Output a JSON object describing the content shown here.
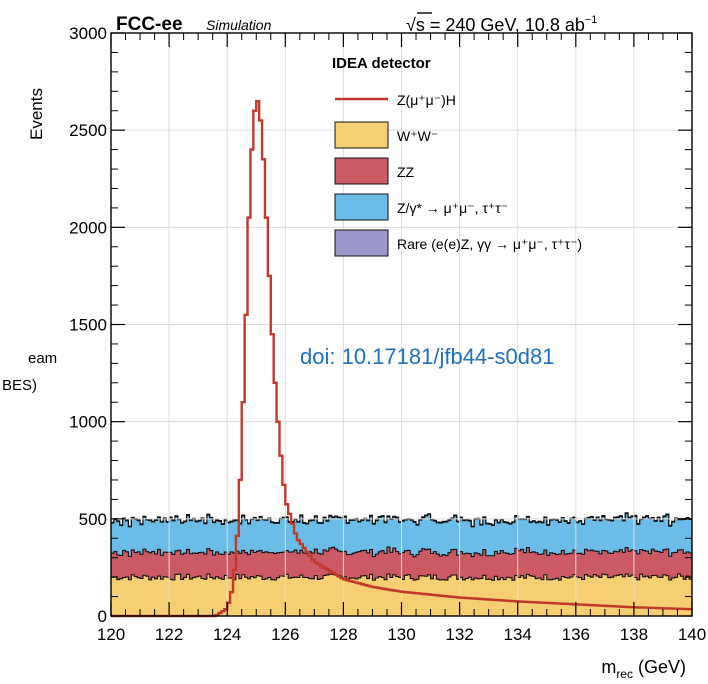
{
  "experiment": "FCC-ee",
  "simulation_label": "Simulation",
  "energy_prefix": "√s = 240 GeV, 10.8 ab",
  "energy_exponent": "−1",
  "detector": "IDEA detector",
  "doi": "doi: 10.17181/jfb44-s0d81",
  "cut_text_1": "eam",
  "cut_text_2": "BES)",
  "colors": {
    "signal": "#c0392b",
    "ww": "#f7cf73",
    "zz": "#cc5a64",
    "zgamma": "#6bbce6",
    "rare": "#9b97c9",
    "doi": "#1f6fc2"
  },
  "chart_data": {
    "type": "histogram",
    "xlabel": "m",
    "xlabel_sub": "rec",
    "xlabel_unit": " (GeV)",
    "ylabel": "Events",
    "xlim": [
      120,
      140
    ],
    "ylim": [
      0,
      3000
    ],
    "x_ticks": [
      "120",
      "122",
      "124",
      "126",
      "128",
      "130",
      "132",
      "134",
      "136",
      "138",
      "140"
    ],
    "y_ticks": [
      "0",
      "500",
      "1000",
      "1500",
      "2000",
      "2500",
      "3000"
    ],
    "grid": true,
    "legend_position": "top-right",
    "bin_width": 0.1,
    "stack_series": [
      {
        "name": "W⁺W⁻",
        "key": "ww",
        "level": 200
      },
      {
        "name": "ZZ",
        "key": "zz",
        "level": 130
      },
      {
        "name": "Z/γ* → μ⁺μ⁻, τ⁺τ⁻",
        "key": "zgamma",
        "level": 165
      },
      {
        "name": "Rare (e(e)Z, γγ → μ⁺μ⁻, τ⁺τ⁻)",
        "key": "rare",
        "level": 4
      }
    ],
    "signal": {
      "name": "Z(μ⁺μ⁻)H",
      "peak_x": 125.0,
      "peak_y": 2700,
      "points": [
        [
          123.6,
          0
        ],
        [
          124.0,
          40
        ],
        [
          124.2,
          150
        ],
        [
          124.4,
          500
        ],
        [
          124.6,
          1300
        ],
        [
          124.8,
          2300
        ],
        [
          125.0,
          2700
        ],
        [
          125.2,
          2500
        ],
        [
          125.4,
          1900
        ],
        [
          125.6,
          1300
        ],
        [
          125.8,
          900
        ],
        [
          126.0,
          600
        ],
        [
          126.4,
          400
        ],
        [
          127.0,
          280
        ],
        [
          128.0,
          190
        ],
        [
          129.0,
          150
        ],
        [
          130.0,
          125
        ],
        [
          132.0,
          95
        ],
        [
          134.0,
          75
        ],
        [
          136.0,
          60
        ],
        [
          138.0,
          45
        ],
        [
          140.0,
          35
        ]
      ]
    }
  }
}
